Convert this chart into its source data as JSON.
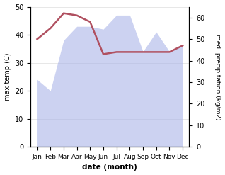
{
  "months": [
    "Jan",
    "Feb",
    "Mar",
    "Apr",
    "May",
    "Jun",
    "Jul",
    "Aug",
    "Sep",
    "Oct",
    "Nov",
    "Dec"
  ],
  "max_temp": [
    24,
    20,
    38,
    43,
    43,
    42,
    47,
    47,
    34,
    41,
    34,
    36
  ],
  "precipitation": [
    50,
    55,
    62,
    61,
    58,
    43,
    44,
    44,
    44,
    44,
    44,
    47
  ],
  "precip_color": "#b05060",
  "fill_color": "#aab4e8",
  "fill_alpha": 0.6,
  "ylabel_left": "max temp (C)",
  "ylabel_right": "med. precipitation (kg/m2)",
  "xlabel": "date (month)",
  "ylim_left": [
    0,
    50
  ],
  "ylim_right": [
    0,
    65
  ],
  "yticks_left": [
    0,
    10,
    20,
    30,
    40,
    50
  ],
  "yticks_right": [
    0,
    10,
    20,
    30,
    40,
    50,
    60
  ],
  "line_width": 1.8
}
